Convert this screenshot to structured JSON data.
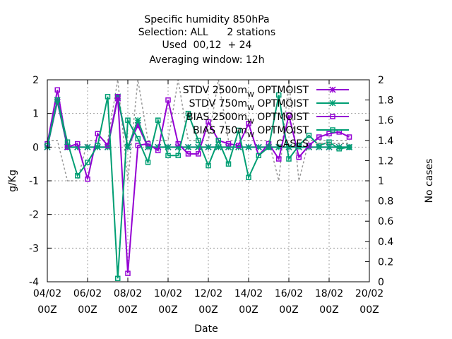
{
  "chart_data": {
    "type": "line",
    "title_lines": [
      "Specific humidity 850hPa",
      "Selection: ALL      2 stations",
      "Used  00,12  + 24",
      "Averaging window: 12h"
    ],
    "xlabel": "Date",
    "ylabel": "g/Kg",
    "y2label": "No cases",
    "x_ticks": [
      {
        "d": 0,
        "l1": "04/02",
        "l2": "00Z"
      },
      {
        "d": 2,
        "l1": "06/02",
        "l2": "00Z"
      },
      {
        "d": 4,
        "l1": "08/02",
        "l2": "00Z"
      },
      {
        "d": 6,
        "l1": "10/02",
        "l2": "00Z"
      },
      {
        "d": 8,
        "l1": "12/02",
        "l2": "00Z"
      },
      {
        "d": 10,
        "l1": "14/02",
        "l2": "00Z"
      },
      {
        "d": 12,
        "l1": "16/02",
        "l2": "00Z"
      },
      {
        "d": 14,
        "l1": "18/02",
        "l2": "00Z"
      },
      {
        "d": 16,
        "l1": "20/02",
        "l2": "00Z"
      }
    ],
    "xlim_days_from_04_02_00Z": [
      0,
      16
    ],
    "ylim": [
      -4,
      2
    ],
    "y_ticks": [
      -4,
      -3,
      -2,
      -1,
      0,
      1,
      2
    ],
    "y2lim": [
      0,
      2
    ],
    "y2_ticks": [
      "0",
      "0.2",
      "0.4",
      "0.6",
      "0.8",
      "1",
      "1.2",
      "1.4",
      "1.6",
      "1.8",
      "2"
    ],
    "grid": true,
    "legend_position": "top-right",
    "x_times_days": [
      0,
      0.5,
      1,
      1.5,
      2,
      2.5,
      3,
      3.5,
      4,
      4.5,
      5,
      5.5,
      6,
      6.5,
      7,
      7.5,
      8,
      8.5,
      9,
      9.5,
      10,
      10.5,
      11,
      11.5,
      12,
      12.5,
      13,
      13.5,
      14,
      14.5,
      15
    ],
    "series": [
      {
        "name": "STDV 2500m",
        "sub": "W",
        "tail": " OPTMOIST",
        "color": "#9400d3",
        "marker": "star",
        "dash": "",
        "axis": "y1",
        "values": [
          0.0,
          1.35,
          0.0,
          0.0,
          0.0,
          0.0,
          0.0,
          1.45,
          0.0,
          0.65,
          0.0,
          0.0,
          0.0,
          0.0,
          0.0,
          0.0,
          0.0,
          0.0,
          0.0,
          0.0,
          0.0,
          0.0,
          0.0,
          0.0,
          0.0,
          0.0,
          0.0,
          0.0,
          0.0,
          0.0,
          0.0
        ]
      },
      {
        "name": "STDV 750m",
        "sub": "W",
        "tail": " OPTMOIST",
        "color": "#009e73",
        "marker": "star",
        "dash": "",
        "axis": "y1",
        "values": [
          0.0,
          1.4,
          0.0,
          0.0,
          0.0,
          0.0,
          0.0,
          1.5,
          0.0,
          0.8,
          0.0,
          0.0,
          0.0,
          0.0,
          0.0,
          0.0,
          0.0,
          0.0,
          0.0,
          0.0,
          0.0,
          0.0,
          0.0,
          0.0,
          0.0,
          0.0,
          0.0,
          0.0,
          0.0,
          0.0,
          0.0
        ]
      },
      {
        "name": "BIAS 2500m",
        "sub": "W",
        "tail": " OPTMOIST",
        "color": "#9400d3",
        "marker": "square",
        "dash": "",
        "axis": "y1",
        "values": [
          0.1,
          1.7,
          0.0,
          0.1,
          -0.95,
          0.4,
          0.05,
          1.5,
          -3.75,
          0.05,
          0.1,
          -0.1,
          1.4,
          0.1,
          -0.2,
          -0.2,
          0.75,
          0.2,
          0.1,
          0.05,
          0.7,
          -0.25,
          0.1,
          -0.35,
          0.95,
          -0.3,
          0.05,
          0.3,
          0.4,
          0.45,
          0.3
        ]
      },
      {
        "name": "BIAS 750m",
        "sub": "W",
        "tail": " OPTMOIST",
        "color": "#009e73",
        "marker": "square",
        "dash": "",
        "axis": "y1",
        "values": [
          0.05,
          1.4,
          0.15,
          -0.85,
          -0.45,
          0.05,
          1.5,
          -3.9,
          0.8,
          0.25,
          -0.45,
          0.8,
          -0.25,
          -0.25,
          1.0,
          0.2,
          -0.55,
          0.2,
          -0.5,
          0.5,
          -0.9,
          -0.25,
          0.0,
          1.55,
          -0.35,
          0.05,
          0.35,
          0.05,
          0.15,
          -0.05,
          0.0
        ]
      },
      {
        "name": "CASES",
        "sub": "",
        "tail": "",
        "color": "#999999",
        "marker": "none",
        "dash": "3,3",
        "axis": "y2",
        "values": [
          1.4,
          1.4,
          1.0,
          1.0,
          1.4,
          1.4,
          1.4,
          2.0,
          1.0,
          2.0,
          1.4,
          1.4,
          1.4,
          2.0,
          1.4,
          1.4,
          1.4,
          2.0,
          1.4,
          1.4,
          1.4,
          1.4,
          1.4,
          1.0,
          2.0,
          1.0,
          1.4,
          1.4,
          1.4,
          1.4,
          1.4
        ]
      }
    ]
  }
}
